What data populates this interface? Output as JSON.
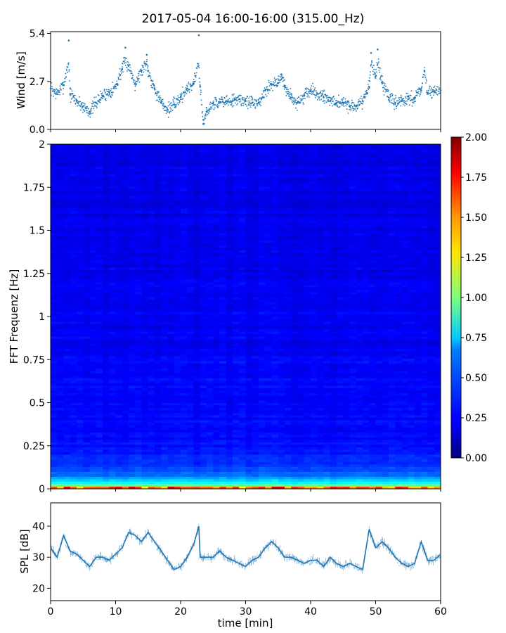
{
  "figure": {
    "title": "2017-05-04 16:00-16:00 (315.00_Hz)"
  },
  "chart_data": [
    {
      "id": "wind",
      "type": "scatter",
      "title": "",
      "xlabel": "",
      "ylabel": "Wind [m/s]",
      "xlim": [
        0,
        60
      ],
      "ylim": [
        0,
        5.5
      ],
      "yticks": [
        "0.0",
        "2.7",
        "5.4"
      ],
      "ytick_values": [
        0.0,
        2.7,
        5.4
      ],
      "color": "#1f77b4",
      "series": [
        {
          "x": [
            0,
            1,
            2,
            2.8,
            3,
            4,
            5,
            6,
            7,
            8,
            9,
            10,
            11,
            11.5,
            12,
            13,
            14,
            14.8,
            15,
            16,
            17,
            18,
            19,
            20,
            21,
            22,
            22.8,
            23,
            23.5,
            24,
            25,
            26,
            27,
            28,
            29,
            30,
            31,
            32,
            33,
            34,
            35,
            35.5,
            36,
            37,
            38,
            39,
            40,
            41,
            42,
            43,
            44,
            45,
            46,
            47,
            48,
            49,
            49.3,
            50,
            50.3,
            51,
            52,
            53,
            54,
            55,
            56,
            57,
            57.5,
            58,
            59,
            60
          ],
          "y": [
            2.3,
            2.0,
            2.5,
            5.0,
            2.0,
            1.6,
            1.3,
            1.0,
            1.5,
            1.9,
            2.1,
            2.4,
            3.4,
            4.6,
            3.6,
            2.6,
            3.3,
            4.2,
            3.3,
            2.3,
            1.5,
            1.1,
            1.4,
            1.8,
            2.3,
            2.6,
            5.3,
            2.4,
            0.3,
            1.0,
            1.5,
            1.5,
            1.6,
            1.6,
            1.7,
            1.6,
            1.5,
            1.5,
            2.2,
            2.5,
            2.6,
            3.1,
            2.4,
            1.8,
            1.5,
            1.9,
            2.2,
            2.0,
            1.8,
            1.6,
            1.5,
            1.5,
            1.3,
            1.3,
            1.6,
            2.4,
            4.3,
            3.0,
            4.5,
            2.6,
            1.8,
            1.5,
            1.6,
            1.7,
            1.8,
            2.2,
            3.3,
            2.0,
            2.1,
            2.2
          ]
        }
      ]
    },
    {
      "id": "spectrogram",
      "type": "heatmap",
      "title": "",
      "xlabel": "",
      "ylabel": "FFT Frequenz [Hz]",
      "xlim": [
        0,
        60
      ],
      "ylim": [
        0,
        2
      ],
      "yticks": [
        "0",
        "0.25",
        "0.5",
        "0.75",
        "1",
        "1.25",
        "1.5",
        "1.75",
        "2"
      ],
      "ytick_values": [
        0,
        0.25,
        0.5,
        0.75,
        1,
        1.25,
        1.5,
        1.75,
        2
      ],
      "colormap": "jet",
      "colorbar": {
        "vmin": 0,
        "vmax": 2,
        "ticks": [
          "0.00",
          "0.25",
          "0.50",
          "0.75",
          "1.00",
          "1.25",
          "1.50",
          "1.75",
          "2.00"
        ]
      },
      "typical_value_by_frequency": [
        {
          "freq": 0.0,
          "value": 1.9
        },
        {
          "freq": 0.01,
          "value": 1.4
        },
        {
          "freq": 0.02,
          "value": 1.0
        },
        {
          "freq": 0.04,
          "value": 0.7
        },
        {
          "freq": 0.08,
          "value": 0.45
        },
        {
          "freq": 0.15,
          "value": 0.33
        },
        {
          "freq": 0.3,
          "value": 0.26
        },
        {
          "freq": 1.0,
          "value": 0.22
        },
        {
          "freq": 2.0,
          "value": 0.2
        }
      ]
    },
    {
      "id": "spl",
      "type": "line",
      "title": "",
      "xlabel": "time [min]",
      "ylabel": "SPL [dB]",
      "xlim": [
        0,
        60
      ],
      "ylim": [
        16,
        47.5
      ],
      "yticks": [
        "20",
        "30",
        "40"
      ],
      "ytick_values": [
        20,
        30,
        40
      ],
      "xticks": [
        "0",
        "10",
        "20",
        "30",
        "40",
        "50",
        "60"
      ],
      "xtick_values": [
        0,
        10,
        20,
        30,
        40,
        50,
        60
      ],
      "color": "#1f77b4",
      "series": [
        {
          "x": [
            0,
            1,
            2,
            3,
            4,
            5,
            6,
            7,
            8,
            9,
            10,
            11,
            12,
            13,
            14,
            15,
            16,
            17,
            18,
            19,
            20,
            21,
            22,
            22.8,
            23,
            24,
            25,
            26,
            27,
            28,
            29,
            30,
            31,
            32,
            33,
            34,
            35,
            36,
            37,
            38,
            39,
            40,
            41,
            42,
            43,
            44,
            45,
            46,
            47,
            48,
            49,
            50,
            51,
            52,
            53,
            54,
            55,
            56,
            57,
            58,
            59,
            60
          ],
          "y": [
            33,
            30,
            37,
            32,
            31,
            29,
            27,
            30,
            30,
            29,
            31,
            33,
            38,
            37,
            35,
            38,
            35,
            32,
            29,
            26,
            27,
            30,
            34,
            40,
            30,
            30,
            30,
            32,
            30,
            29,
            28,
            27,
            29,
            30,
            33,
            35,
            33,
            30,
            30,
            29,
            28,
            29,
            29,
            27,
            30,
            28,
            27,
            28,
            27,
            26,
            39,
            33,
            35,
            33,
            30,
            28,
            27,
            28,
            35,
            29,
            29,
            31
          ]
        }
      ]
    }
  ]
}
